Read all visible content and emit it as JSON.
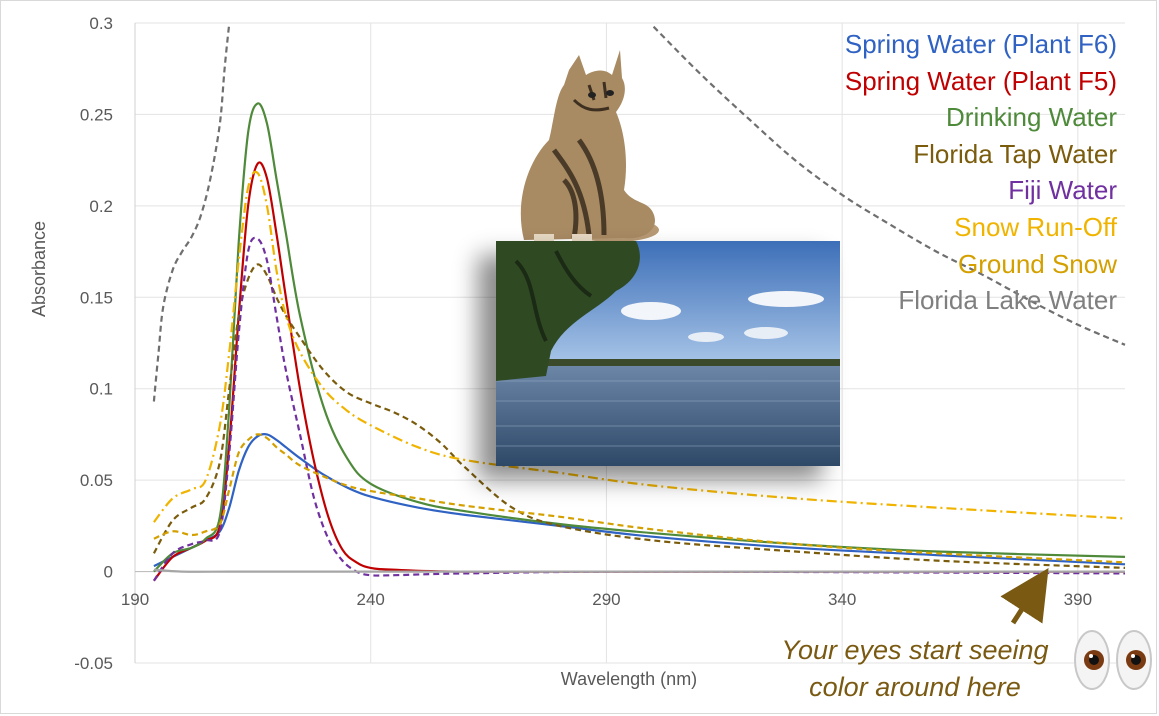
{
  "chart_data": {
    "type": "line",
    "xlabel": "Wavelength (nm)",
    "ylabel": "Absorbance",
    "xlim": [
      190,
      400
    ],
    "ylim": [
      -0.05,
      0.3
    ],
    "x_ticks": [
      "190",
      "240",
      "290",
      "340",
      "390"
    ],
    "y_ticks": [
      "0.3",
      "0.25",
      "0.2",
      "0.15",
      "0.1",
      "0.05",
      "0",
      "-0.05"
    ],
    "grid": true,
    "legend_position": "top-right",
    "series": [
      {
        "name": "Spring Water (Plant F6)",
        "color": "#2f62c2",
        "style": "solid",
        "x": [
          194,
          198,
          202,
          205,
          208,
          210,
          212,
          214,
          216,
          218,
          220,
          222,
          225,
          230,
          235,
          240,
          250,
          260,
          280,
          300,
          330,
          360,
          400
        ],
        "y": [
          0.003,
          0.008,
          0.013,
          0.017,
          0.022,
          0.035,
          0.055,
          0.068,
          0.074,
          0.075,
          0.072,
          0.068,
          0.062,
          0.053,
          0.046,
          0.041,
          0.035,
          0.031,
          0.025,
          0.019,
          0.013,
          0.009,
          0.004
        ]
      },
      {
        "name": "Spring Water (Plant F5)",
        "color": "#c00000",
        "style": "solid",
        "x": [
          194,
          198,
          202,
          205,
          208,
          210,
          212,
          214,
          216,
          218,
          220,
          222,
          225,
          228,
          231,
          234,
          237,
          240,
          245,
          260,
          300,
          400
        ],
        "y": [
          -0.005,
          0.008,
          0.013,
          0.017,
          0.025,
          0.07,
          0.14,
          0.2,
          0.223,
          0.215,
          0.185,
          0.15,
          0.1,
          0.06,
          0.03,
          0.012,
          0.005,
          0.002,
          0.001,
          0.0,
          0.0,
          0.0
        ]
      },
      {
        "name": "Drinking Water",
        "color": "#4e8a3a",
        "style": "solid",
        "x": [
          194,
          198,
          202,
          205,
          208,
          210,
          212,
          214,
          216,
          218,
          220,
          222,
          225,
          230,
          235,
          240,
          250,
          260,
          280,
          300,
          330,
          360,
          400
        ],
        "y": [
          0.0,
          0.01,
          0.013,
          0.018,
          0.03,
          0.09,
          0.18,
          0.24,
          0.256,
          0.245,
          0.215,
          0.185,
          0.14,
          0.09,
          0.062,
          0.048,
          0.038,
          0.033,
          0.026,
          0.021,
          0.015,
          0.011,
          0.008
        ]
      },
      {
        "name": "Florida Tap Water",
        "color": "#7a5c0c",
        "style": "dashed",
        "x": [
          194,
          198,
          202,
          205,
          208,
          210,
          212,
          214,
          216,
          218,
          220,
          222,
          225,
          230,
          235,
          240,
          245,
          250,
          255,
          260,
          270,
          280,
          300,
          330,
          360,
          400
        ],
        "y": [
          0.01,
          0.028,
          0.035,
          0.04,
          0.06,
          0.1,
          0.14,
          0.16,
          0.168,
          0.162,
          0.15,
          0.14,
          0.128,
          0.11,
          0.098,
          0.092,
          0.087,
          0.08,
          0.07,
          0.057,
          0.035,
          0.025,
          0.017,
          0.011,
          0.006,
          0.002
        ]
      },
      {
        "name": "Fiji Water",
        "color": "#7030a0",
        "style": "dashed",
        "x": [
          194,
          198,
          202,
          205,
          208,
          210,
          212,
          214,
          216,
          218,
          220,
          222,
          225,
          228,
          231,
          234,
          237,
          240,
          245,
          260,
          300,
          400
        ],
        "y": [
          -0.005,
          0.01,
          0.015,
          0.017,
          0.022,
          0.065,
          0.13,
          0.175,
          0.182,
          0.17,
          0.14,
          0.11,
          0.075,
          0.04,
          0.018,
          0.006,
          0.0,
          -0.002,
          -0.002,
          -0.001,
          0.0,
          -0.001
        ]
      },
      {
        "name": "Snow Run-Off",
        "color": "#f0b400",
        "style": "dashdot",
        "x": [
          194,
          198,
          202,
          205,
          208,
          210,
          212,
          214,
          216,
          218,
          220,
          222,
          225,
          230,
          235,
          240,
          250,
          260,
          280,
          300,
          330,
          360,
          400
        ],
        "y": [
          0.027,
          0.04,
          0.045,
          0.05,
          0.08,
          0.12,
          0.17,
          0.21,
          0.218,
          0.2,
          0.165,
          0.14,
          0.12,
          0.1,
          0.088,
          0.08,
          0.068,
          0.061,
          0.054,
          0.047,
          0.04,
          0.035,
          0.029
        ]
      },
      {
        "name": "Ground Snow",
        "color": "#d4a000",
        "style": "dashed",
        "x": [
          194,
          198,
          202,
          205,
          208,
          210,
          212,
          214,
          216,
          218,
          220,
          222,
          225,
          230,
          235,
          240,
          250,
          260,
          280,
          300,
          330,
          360,
          400
        ],
        "y": [
          0.018,
          0.022,
          0.02,
          0.022,
          0.026,
          0.045,
          0.065,
          0.072,
          0.075,
          0.073,
          0.068,
          0.064,
          0.058,
          0.052,
          0.047,
          0.044,
          0.04,
          0.036,
          0.03,
          0.023,
          0.015,
          0.01,
          0.005
        ]
      },
      {
        "name": "Florida Lake Water",
        "color": "#a6a6a6",
        "style": "solid",
        "x": [
          194,
          200,
          210,
          220,
          240,
          270,
          300,
          350,
          400
        ],
        "y": [
          0.001,
          0.0,
          0.0,
          0.0,
          0.0,
          0.0,
          0.0,
          0.0,
          0.0
        ]
      },
      {
        "name": "",
        "color": "#6f6f6f",
        "style": "dashed",
        "x": [
          194,
          195,
          196,
          198,
          200,
          202,
          204,
          206,
          208,
          209,
          210
        ],
        "y": [
          0.093,
          0.12,
          0.145,
          0.165,
          0.175,
          0.183,
          0.195,
          0.215,
          0.245,
          0.275,
          0.3
        ]
      },
      {
        "name": "",
        "color": "#6f6f6f",
        "style": "dashed",
        "x": [
          300,
          310,
          320,
          330,
          340,
          350,
          360,
          370,
          380,
          390,
          400
        ],
        "y": [
          0.298,
          0.272,
          0.248,
          0.225,
          0.206,
          0.19,
          0.175,
          0.162,
          0.148,
          0.135,
          0.124
        ]
      }
    ]
  },
  "annotation": {
    "text": "Your eyes start seeing color around here",
    "color": "#7a5a12"
  },
  "images": {
    "cat": "tabby-cat-photo",
    "lake": "lake-photo",
    "eyes": "eyes-emoji"
  }
}
